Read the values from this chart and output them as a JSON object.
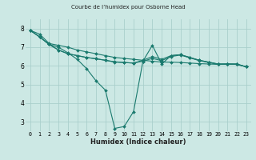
{
  "title": "Courbe de l’humidex pour Osborne Head",
  "xlabel": "Humidex (Indice chaleur)",
  "bg_color": "#cce8e4",
  "grid_color": "#aacfcc",
  "line_color": "#1a7a6e",
  "xlim": [
    -0.5,
    23.5
  ],
  "ylim": [
    2.5,
    8.5
  ],
  "yticks": [
    3,
    4,
    5,
    6,
    7,
    8
  ],
  "xticks": [
    0,
    1,
    2,
    3,
    4,
    5,
    6,
    7,
    8,
    9,
    10,
    11,
    12,
    13,
    14,
    15,
    16,
    17,
    18,
    19,
    20,
    21,
    22,
    23
  ],
  "series": [
    {
      "x": [
        0,
        1,
        2,
        3,
        4,
        5,
        6,
        7,
        8,
        9,
        10,
        11,
        12,
        13,
        14,
        15,
        16,
        17,
        18,
        19,
        20,
        21,
        22,
        23
      ],
      "y": [
        7.9,
        7.7,
        7.2,
        7.1,
        7.0,
        6.85,
        6.75,
        6.65,
        6.55,
        6.45,
        6.4,
        6.35,
        6.3,
        6.25,
        6.2,
        6.2,
        6.18,
        6.15,
        6.12,
        6.1,
        6.08,
        6.1,
        6.08,
        5.95
      ]
    },
    {
      "x": [
        0,
        1,
        2,
        3,
        4,
        5,
        6,
        7,
        8,
        9,
        10,
        11,
        12,
        13,
        14,
        15,
        16,
        17,
        18,
        19,
        20,
        21,
        22,
        23
      ],
      "y": [
        7.9,
        7.55,
        7.15,
        7.0,
        6.7,
        6.35,
        5.85,
        5.2,
        4.7,
        2.65,
        2.75,
        3.55,
        6.25,
        7.1,
        6.1,
        6.55,
        6.6,
        6.45,
        6.3,
        6.2,
        6.1,
        6.1,
        6.1,
        5.95
      ]
    },
    {
      "x": [
        0,
        1,
        2,
        3,
        4,
        5,
        6,
        7,
        8,
        9,
        10,
        11,
        12,
        13,
        14,
        15,
        16,
        17,
        18,
        19,
        20,
        21,
        22,
        23
      ],
      "y": [
        7.9,
        7.55,
        7.15,
        6.85,
        6.65,
        6.55,
        6.45,
        6.38,
        6.3,
        6.22,
        6.18,
        6.15,
        6.3,
        6.5,
        6.35,
        6.55,
        6.6,
        6.45,
        6.3,
        6.2,
        6.1,
        6.1,
        6.1,
        5.95
      ]
    },
    {
      "x": [
        0,
        1,
        2,
        3,
        4,
        5,
        6,
        7,
        8,
        9,
        10,
        11,
        12,
        13,
        14,
        15,
        16,
        17,
        18,
        19,
        20,
        21,
        22,
        23
      ],
      "y": [
        7.9,
        7.55,
        7.15,
        6.85,
        6.65,
        6.55,
        6.45,
        6.38,
        6.3,
        6.2,
        6.18,
        6.15,
        6.25,
        6.4,
        6.28,
        6.5,
        6.58,
        6.43,
        6.28,
        6.18,
        6.08,
        6.08,
        6.08,
        5.95
      ]
    }
  ],
  "xlabel_fontsize": 6.0,
  "tick_fontsize": 4.8,
  "ytick_fontsize": 5.5
}
